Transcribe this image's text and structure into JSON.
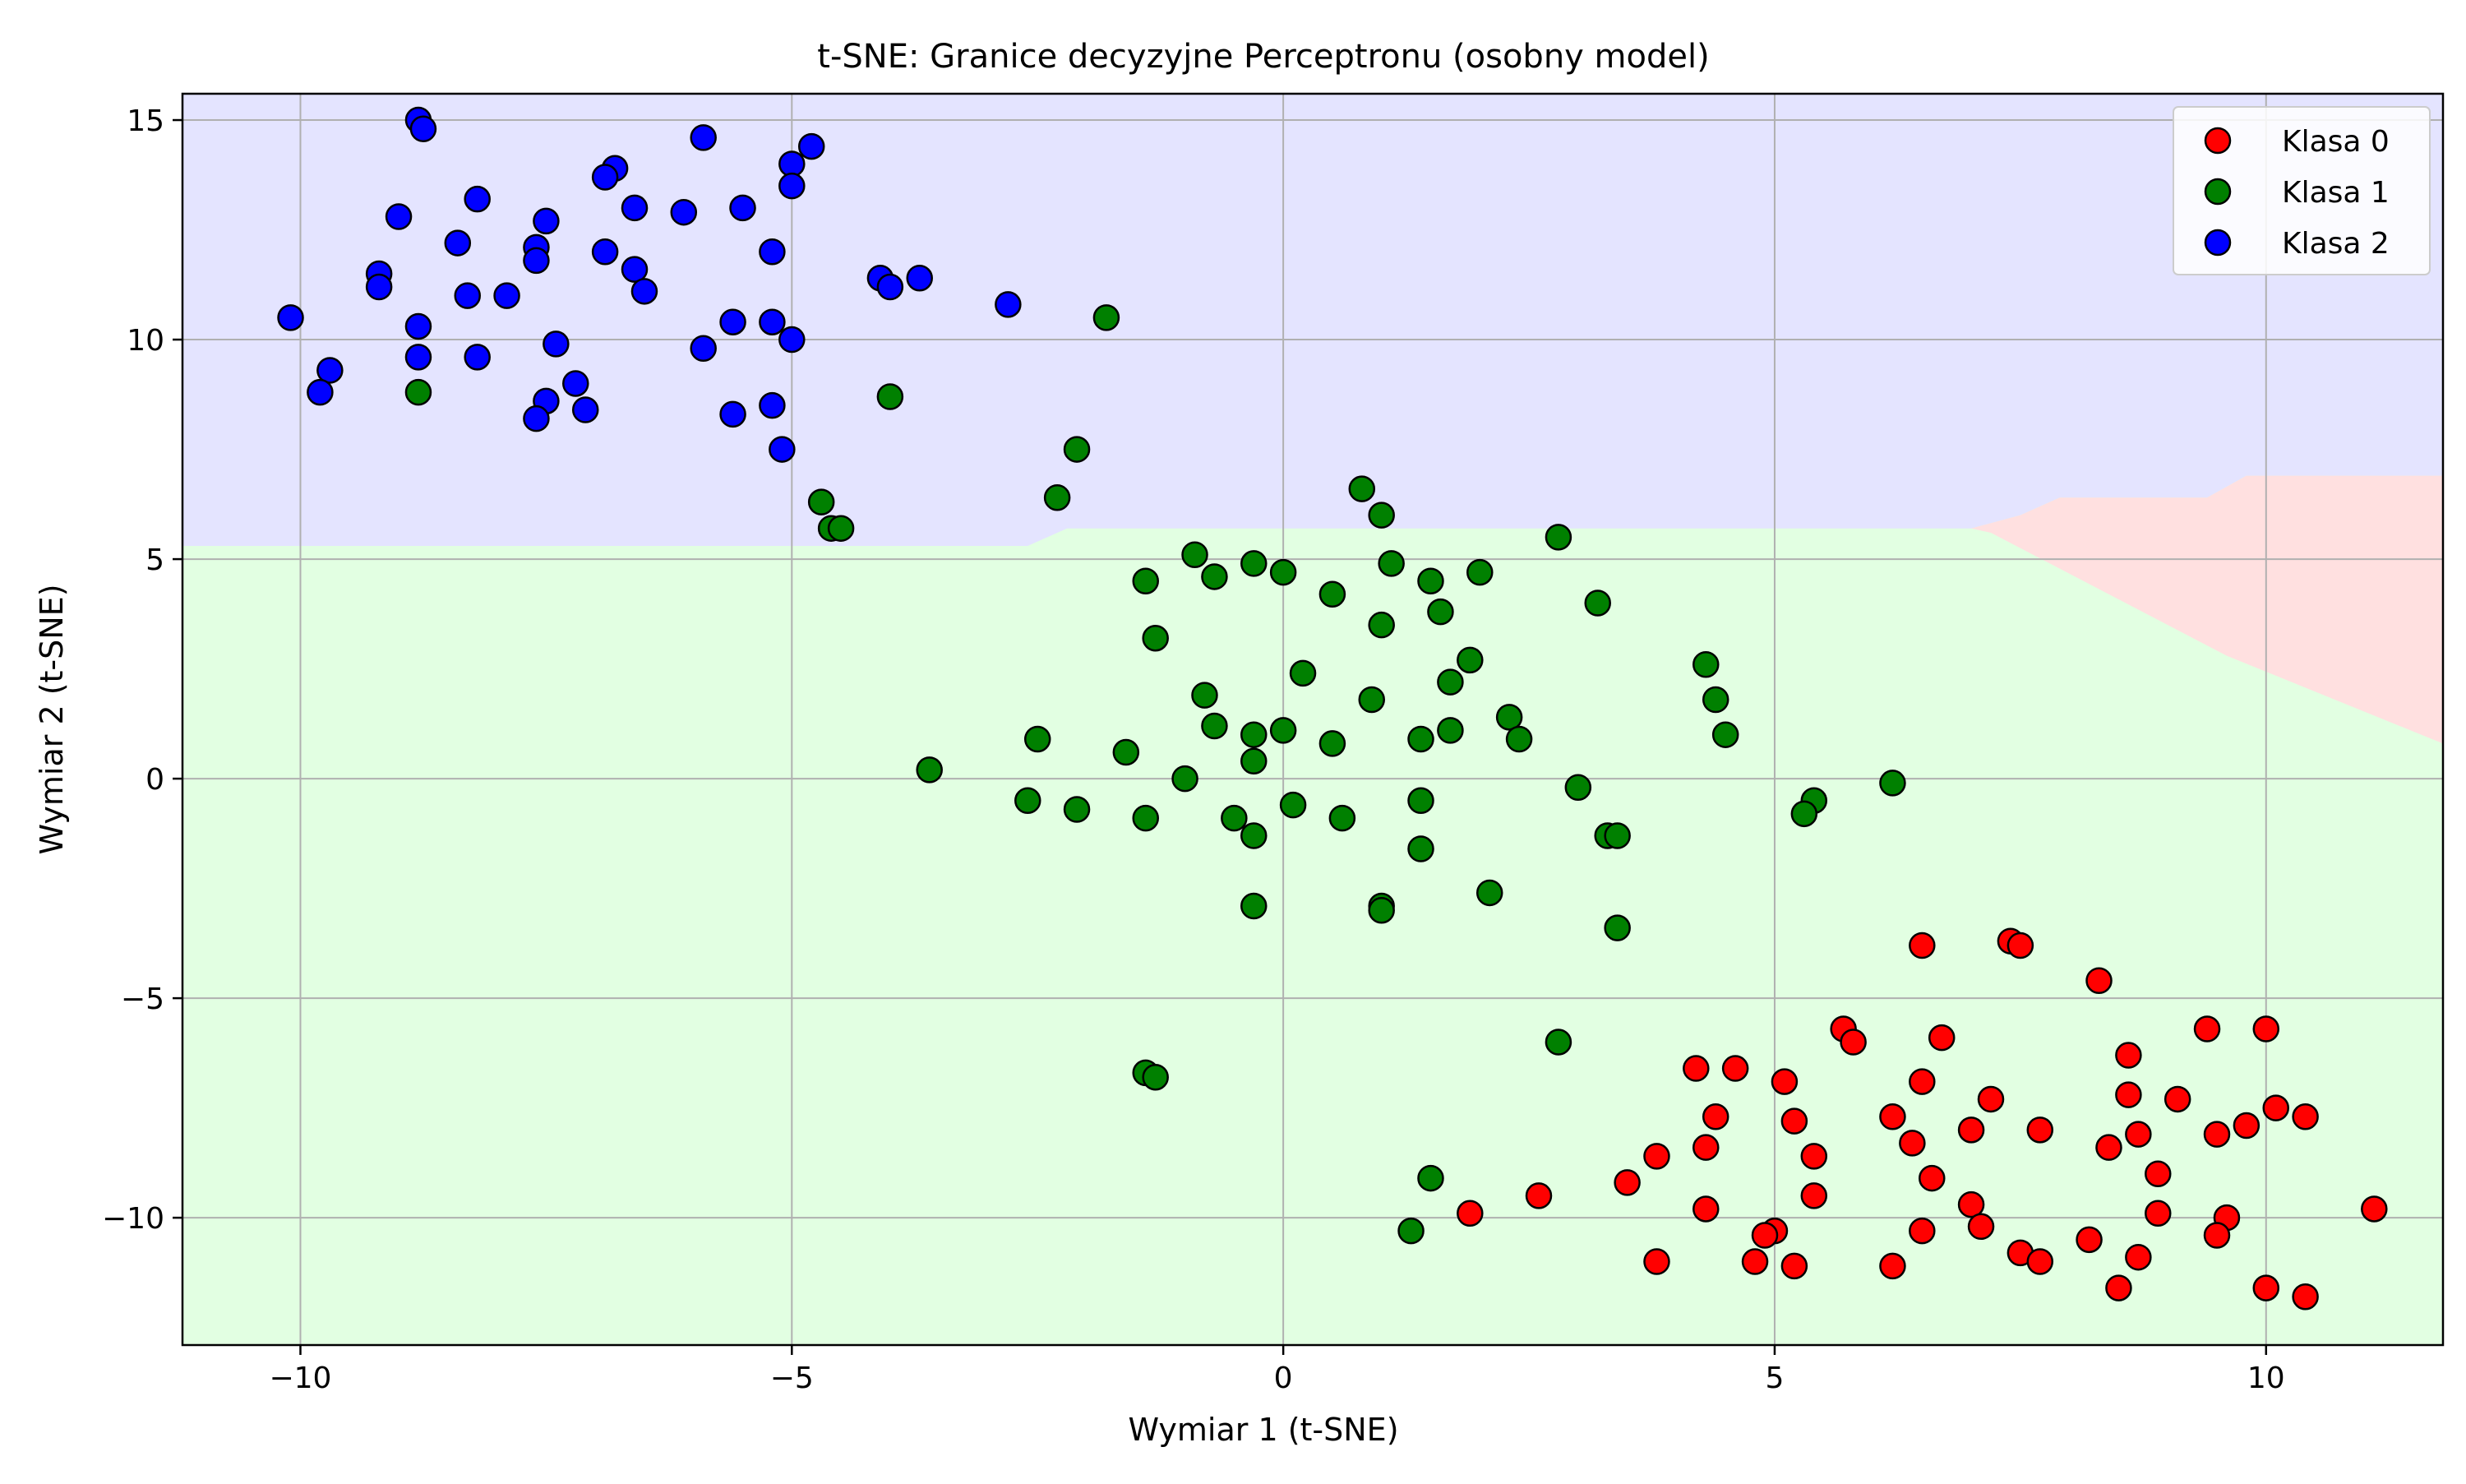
{
  "chart_data": {
    "type": "scatter",
    "title": "t-SNE: Granice decyzyjne Perceptronu (osobny model)",
    "xlabel": "Wymiar 1 (t-SNE)",
    "ylabel": "Wymiar 2 (t-SNE)",
    "xlim": [
      -11.2,
      11.8
    ],
    "ylim": [
      -12.9,
      15.6
    ],
    "xticks": [
      -10,
      -5,
      0,
      5,
      10
    ],
    "xtick_labels": [
      "−10",
      "−5",
      "0",
      "5",
      "10"
    ],
    "yticks": [
      -10,
      -5,
      0,
      5,
      10,
      15
    ],
    "ytick_labels": [
      "−10",
      "−5",
      "0",
      "5",
      "10",
      "15"
    ],
    "grid": true,
    "legend_position": "top-right",
    "colors": {
      "class_0": "#ff0000",
      "class_1": "#008000",
      "class_2": "#0000ff",
      "region_0": "#ffe0e0",
      "region_1": "#e2ffe2",
      "region_2": "#e4e4ff",
      "marker_edge": "#000000",
      "grid": "#b0b0b0"
    },
    "decision_regions": {
      "class_2_boundary": [
        [
          -11.2,
          5.3
        ],
        [
          -2.6,
          5.3
        ],
        [
          -2.2,
          5.7
        ],
        [
          7.0,
          5.7
        ],
        [
          7.5,
          6.0
        ],
        [
          7.9,
          6.4
        ],
        [
          9.4,
          6.4
        ],
        [
          9.8,
          6.9
        ],
        [
          11.8,
          6.9
        ]
      ],
      "class_0_polygon": [
        [
          7.0,
          5.7
        ],
        [
          7.5,
          6.0
        ],
        [
          7.9,
          6.4
        ],
        [
          9.4,
          6.4
        ],
        [
          9.8,
          6.9
        ],
        [
          11.8,
          6.9
        ],
        [
          11.8,
          0.8
        ],
        [
          9.6,
          2.8
        ],
        [
          7.2,
          5.6
        ]
      ]
    },
    "series": [
      {
        "name": "Klasa 0",
        "color": "#ff0000",
        "points": [
          [
            6.5,
            -3.8
          ],
          [
            7.4,
            -3.7
          ],
          [
            7.5,
            -3.8
          ],
          [
            8.3,
            -4.6
          ],
          [
            9.4,
            -5.7
          ],
          [
            10.0,
            -5.7
          ],
          [
            5.7,
            -5.7
          ],
          [
            5.8,
            -6.0
          ],
          [
            6.7,
            -5.9
          ],
          [
            8.6,
            -6.3
          ],
          [
            4.6,
            -6.6
          ],
          [
            4.2,
            -6.6
          ],
          [
            6.5,
            -6.9
          ],
          [
            5.1,
            -6.9
          ],
          [
            7.2,
            -7.3
          ],
          [
            8.6,
            -7.2
          ],
          [
            9.1,
            -7.3
          ],
          [
            10.1,
            -7.5
          ],
          [
            10.4,
            -7.7
          ],
          [
            4.4,
            -7.7
          ],
          [
            5.2,
            -7.8
          ],
          [
            6.2,
            -7.7
          ],
          [
            7.0,
            -8.0
          ],
          [
            7.7,
            -8.0
          ],
          [
            8.7,
            -8.1
          ],
          [
            9.5,
            -8.1
          ],
          [
            9.8,
            -7.9
          ],
          [
            4.3,
            -8.4
          ],
          [
            3.8,
            -8.6
          ],
          [
            5.4,
            -8.6
          ],
          [
            6.4,
            -8.3
          ],
          [
            8.4,
            -8.4
          ],
          [
            6.6,
            -9.1
          ],
          [
            8.9,
            -9.0
          ],
          [
            3.5,
            -9.2
          ],
          [
            2.6,
            -9.5
          ],
          [
            5.4,
            -9.5
          ],
          [
            7.0,
            -9.7
          ],
          [
            1.9,
            -9.9
          ],
          [
            4.3,
            -9.8
          ],
          [
            8.9,
            -9.9
          ],
          [
            9.6,
            -10.0
          ],
          [
            11.1,
            -9.8
          ],
          [
            5.0,
            -10.3
          ],
          [
            4.9,
            -10.4
          ],
          [
            6.5,
            -10.3
          ],
          [
            7.1,
            -10.2
          ],
          [
            8.2,
            -10.5
          ],
          [
            9.5,
            -10.4
          ],
          [
            3.8,
            -11.0
          ],
          [
            4.8,
            -11.0
          ],
          [
            5.2,
            -11.1
          ],
          [
            6.2,
            -11.1
          ],
          [
            7.5,
            -10.8
          ],
          [
            7.7,
            -11.0
          ],
          [
            8.7,
            -10.9
          ],
          [
            8.5,
            -11.6
          ],
          [
            10.0,
            -11.6
          ],
          [
            10.4,
            -11.8
          ]
        ]
      },
      {
        "name": "Klasa 1",
        "color": "#008000",
        "points": [
          [
            -8.8,
            8.8
          ],
          [
            -4.0,
            8.7
          ],
          [
            -1.8,
            10.5
          ],
          [
            -2.1,
            7.5
          ],
          [
            -2.3,
            6.4
          ],
          [
            -4.7,
            6.3
          ],
          [
            -4.6,
            5.7
          ],
          [
            -4.5,
            5.7
          ],
          [
            0.8,
            6.6
          ],
          [
            1.0,
            6.0
          ],
          [
            2.8,
            5.5
          ],
          [
            -0.9,
            5.1
          ],
          [
            -0.3,
            4.9
          ],
          [
            0.0,
            4.7
          ],
          [
            1.1,
            4.9
          ],
          [
            -0.7,
            4.6
          ],
          [
            -1.4,
            4.5
          ],
          [
            1.5,
            4.5
          ],
          [
            2.0,
            4.7
          ],
          [
            0.5,
            4.2
          ],
          [
            3.2,
            4.0
          ],
          [
            1.6,
            3.8
          ],
          [
            1.0,
            3.5
          ],
          [
            -1.3,
            3.2
          ],
          [
            1.9,
            2.7
          ],
          [
            0.2,
            2.4
          ],
          [
            4.3,
            2.6
          ],
          [
            1.7,
            2.2
          ],
          [
            -0.8,
            1.9
          ],
          [
            0.9,
            1.8
          ],
          [
            4.4,
            1.8
          ],
          [
            2.3,
            1.4
          ],
          [
            -0.7,
            1.2
          ],
          [
            -0.3,
            1.0
          ],
          [
            0.0,
            1.1
          ],
          [
            1.7,
            1.1
          ],
          [
            2.4,
            0.9
          ],
          [
            4.5,
            1.0
          ],
          [
            -2.5,
            0.9
          ],
          [
            0.5,
            0.8
          ],
          [
            1.4,
            0.9
          ],
          [
            -1.6,
            0.6
          ],
          [
            -3.6,
            0.2
          ],
          [
            -0.3,
            0.4
          ],
          [
            -1.0,
            0.0
          ],
          [
            3.0,
            -0.2
          ],
          [
            6.2,
            -0.1
          ],
          [
            -2.6,
            -0.5
          ],
          [
            -2.1,
            -0.7
          ],
          [
            0.1,
            -0.6
          ],
          [
            1.4,
            -0.5
          ],
          [
            5.4,
            -0.5
          ],
          [
            5.3,
            -0.8
          ],
          [
            -1.4,
            -0.9
          ],
          [
            -0.5,
            -0.9
          ],
          [
            0.6,
            -0.9
          ],
          [
            -0.3,
            -1.3
          ],
          [
            3.3,
            -1.3
          ],
          [
            3.4,
            -1.3
          ],
          [
            1.4,
            -1.6
          ],
          [
            2.1,
            -2.6
          ],
          [
            1.0,
            -2.9
          ],
          [
            -0.3,
            -2.9
          ],
          [
            1.0,
            -3.0
          ],
          [
            3.4,
            -3.4
          ],
          [
            2.8,
            -6.0
          ],
          [
            -1.4,
            -6.7
          ],
          [
            -1.3,
            -6.8
          ],
          [
            1.5,
            -9.1
          ],
          [
            1.3,
            -10.3
          ]
        ]
      },
      {
        "name": "Klasa 2",
        "color": "#0000ff",
        "points": [
          [
            -8.8,
            15.0
          ],
          [
            -8.75,
            14.8
          ],
          [
            -5.9,
            14.6
          ],
          [
            -4.8,
            14.4
          ],
          [
            -5.0,
            14.0
          ],
          [
            -6.8,
            13.9
          ],
          [
            -6.9,
            13.7
          ],
          [
            -5.0,
            13.5
          ],
          [
            -8.2,
            13.2
          ],
          [
            -6.6,
            13.0
          ],
          [
            -6.1,
            12.9
          ],
          [
            -5.5,
            13.0
          ],
          [
            -9.0,
            12.8
          ],
          [
            -7.5,
            12.7
          ],
          [
            -8.4,
            12.2
          ],
          [
            -7.6,
            12.1
          ],
          [
            -6.9,
            12.0
          ],
          [
            -5.2,
            12.0
          ],
          [
            -7.6,
            11.8
          ],
          [
            -6.6,
            11.6
          ],
          [
            -9.2,
            11.5
          ],
          [
            -4.1,
            11.4
          ],
          [
            -3.7,
            11.4
          ],
          [
            -9.2,
            11.2
          ],
          [
            -4.0,
            11.2
          ],
          [
            -6.5,
            11.1
          ],
          [
            -8.3,
            11.0
          ],
          [
            -7.9,
            11.0
          ],
          [
            -2.8,
            10.8
          ],
          [
            -10.1,
            10.5
          ],
          [
            -8.8,
            10.3
          ],
          [
            -5.6,
            10.4
          ],
          [
            -5.2,
            10.4
          ],
          [
            -5.0,
            10.0
          ],
          [
            -7.4,
            9.9
          ],
          [
            -5.9,
            9.8
          ],
          [
            -8.2,
            9.6
          ],
          [
            -8.8,
            9.6
          ],
          [
            -9.7,
            9.3
          ],
          [
            -7.2,
            9.0
          ],
          [
            -9.8,
            8.8
          ],
          [
            -7.5,
            8.6
          ],
          [
            -5.2,
            8.5
          ],
          [
            -7.1,
            8.4
          ],
          [
            -5.6,
            8.3
          ],
          [
            -7.6,
            8.2
          ],
          [
            -5.1,
            7.5
          ]
        ]
      }
    ]
  }
}
